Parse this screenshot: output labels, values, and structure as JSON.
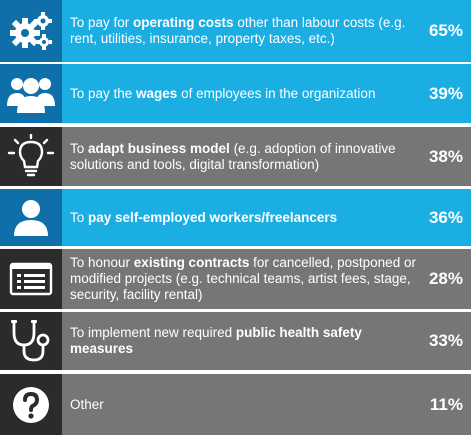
{
  "chart_data": {
    "type": "table",
    "rows": [
      {
        "pre": "To pay for ",
        "bold": "operating costs",
        "post": " other than labour costs (e.g. rent, utilities, insurance, property taxes, etc.)",
        "pct": "65%",
        "value": 65,
        "icon": "gears-icon",
        "theme": "blue"
      },
      {
        "pre": "To pay the ",
        "bold": "wages",
        "post": " of employees in the organization",
        "pct": "39%",
        "value": 39,
        "icon": "people-icon",
        "theme": "blue"
      },
      {
        "pre": "To ",
        "bold": "adapt business model",
        "post": " (e.g. adoption of innovative solutions and tools, digital transformation)",
        "pct": "38%",
        "value": 38,
        "icon": "lightbulb-icon",
        "theme": "gray"
      },
      {
        "pre": "To ",
        "bold": "pay self-employed workers/freelancers",
        "post": "",
        "pct": "36%",
        "value": 36,
        "icon": "person-icon",
        "theme": "blue"
      },
      {
        "pre": "To honour ",
        "bold": "existing contracts",
        "post": " for cancelled, postponed or modified projects (e.g. technical teams, artist fees, stage, security, facility rental)",
        "pct": "28%",
        "value": 28,
        "icon": "list-document-icon",
        "theme": "gray"
      },
      {
        "pre": "To implement new required ",
        "bold": "public health safety measures",
        "post": "",
        "pct": "33%",
        "value": 33,
        "icon": "stethoscope-icon",
        "theme": "gray"
      },
      {
        "pre": "Other",
        "bold": "",
        "post": "",
        "pct": "11%",
        "value": 11,
        "icon": "question-icon",
        "theme": "gray"
      }
    ]
  },
  "colors": {
    "blue_text_bg": "#1aaee3",
    "blue_icon_bg": "#0f6fa8",
    "gray_text_bg": "#767676",
    "gray_icon_bg": "#2b2b2b"
  }
}
